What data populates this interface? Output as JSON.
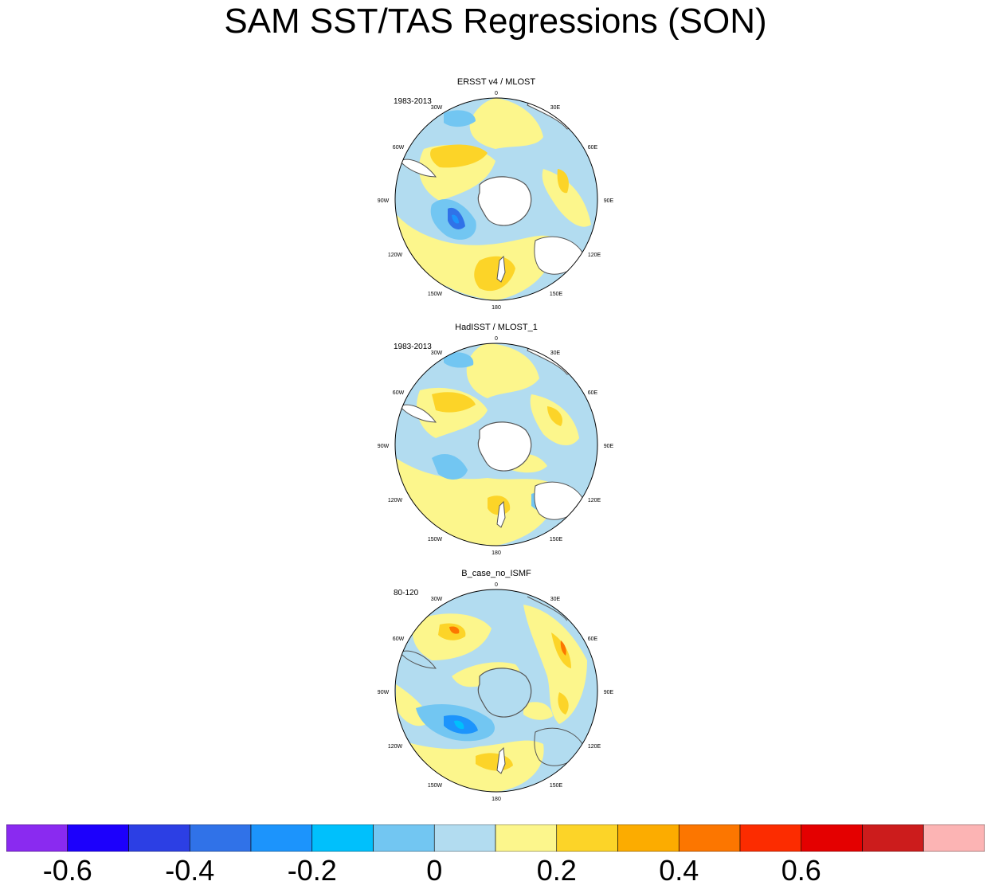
{
  "title": "SAM SST/TAS Regressions (SON)",
  "panels": [
    {
      "title": "ERSST v4 / MLOST",
      "period": "1983-2013"
    },
    {
      "title": "HadISST / MLOST_1",
      "period": "1983-2013"
    },
    {
      "title": "B_case_no_ISMF",
      "period": "80-120"
    }
  ],
  "longitude_labels": [
    "0",
    "30E",
    "60E",
    "90E",
    "120E",
    "150E",
    "180",
    "150W",
    "120W",
    "90W",
    "60W",
    "30W"
  ],
  "colorbar": {
    "colors": [
      "#8a2af0",
      "#1c00fc",
      "#2c3fe4",
      "#3072e8",
      "#1c94fc",
      "#00c0fc",
      "#72c6f2",
      "#b2dcf0",
      "#fcf68c",
      "#fcd428",
      "#fcac00",
      "#fc7600",
      "#fc2c00",
      "#e40000",
      "#cc1c1c",
      "#fcb4b4"
    ],
    "tick_labels": [
      "-0.6",
      "-0.4",
      "-0.2",
      "0",
      "0.2",
      "0.4",
      "0.6"
    ]
  },
  "chart_data": {
    "type": "heatmap",
    "title": "SAM SST/TAS Regressions (SON)",
    "projection": "south polar stereographic",
    "levels": [
      -0.7,
      -0.6,
      -0.5,
      -0.4,
      -0.3,
      -0.2,
      -0.1,
      0,
      0.1,
      0.2,
      0.3,
      0.4,
      0.5,
      0.6,
      0.7
    ],
    "panels": [
      "ERSST v4 / MLOST",
      "HadISST / MLOST_1",
      "B_case_no_ISMF"
    ]
  }
}
